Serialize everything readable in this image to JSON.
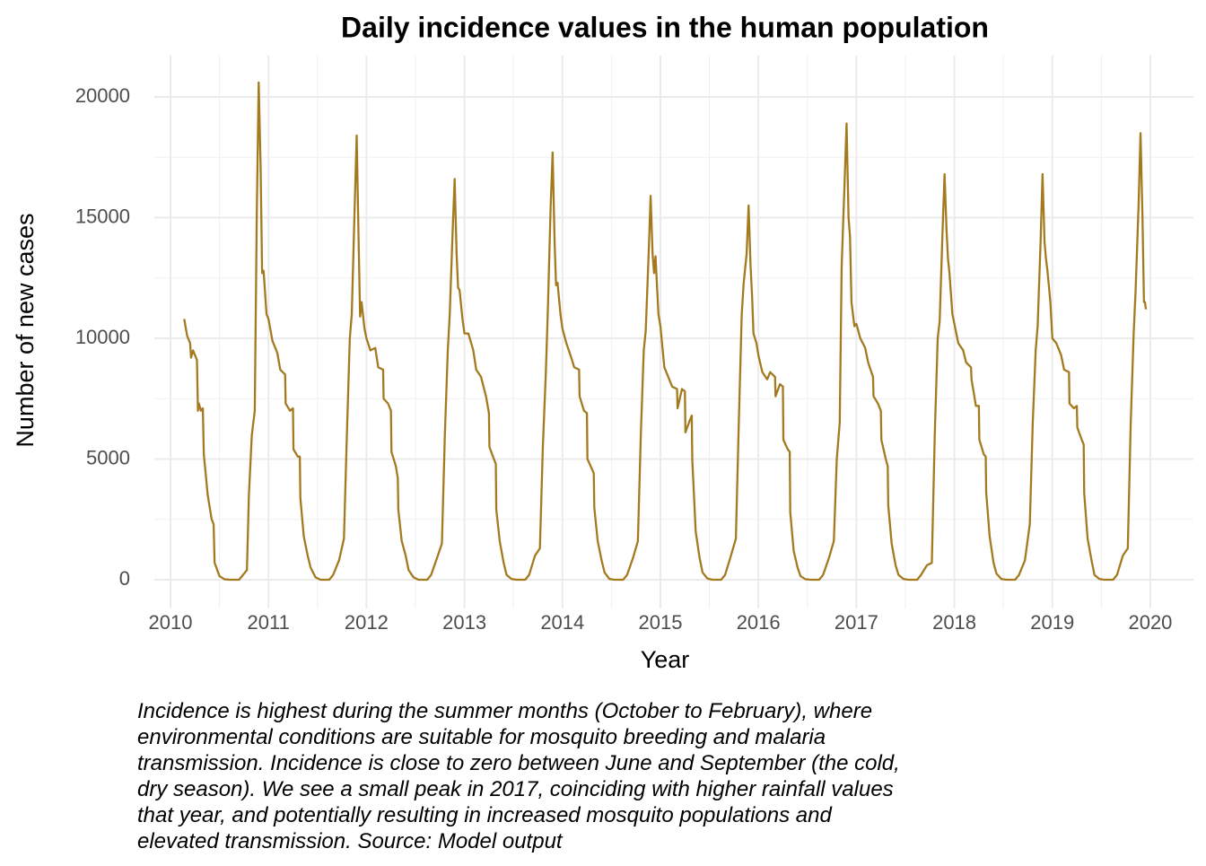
{
  "chart_data": {
    "type": "line",
    "title": "Daily incidence values in the human population",
    "x_label": "Year",
    "y_label": "Number of new cases",
    "caption": [
      "Incidence is highest during the summer months (October to February), where",
      "environmental conditions are suitable for mosquito breeding and malaria",
      "transmission. Incidence is close to zero between June and September (the cold,",
      "dry season). We see a small peak in 2017, coinciding with higher rainfall values",
      "that year, and potentially resulting in increased mosquito populations and",
      "elevated transmission. Source: Model output"
    ],
    "color": "#a47a1e",
    "grid": true,
    "xlim": [
      2009.835,
      2020.44
    ],
    "ylim": [
      -1190,
      21710
    ],
    "xticks": [
      2010,
      2011,
      2012,
      2013,
      2014,
      2015,
      2016,
      2017,
      2018,
      2019,
      2020
    ],
    "yticks": [
      0,
      5000,
      10000,
      15000,
      20000
    ],
    "xminor": [
      2010.5,
      2011.5,
      2012.5,
      2013.5,
      2014.5,
      2015.5,
      2016.5,
      2017.5,
      2018.5,
      2019.5
    ],
    "yminor": [
      2500,
      7500,
      12500,
      17500
    ],
    "x": [
      2010.14,
      2010.17,
      2010.2,
      2010.21,
      2010.23,
      2010.27,
      2010.28,
      2010.29,
      2010.31,
      2010.33,
      2010.34,
      2010.38,
      2010.42,
      2010.44,
      2010.45,
      2010.5,
      2010.55,
      2010.6,
      2010.7,
      2010.74,
      2010.78,
      2010.8,
      2010.83,
      2010.86,
      2010.88,
      2010.9,
      2010.92,
      2010.935,
      2010.95,
      2010.98,
      2011.0,
      2011.04,
      2011.09,
      2011.12,
      2011.17,
      2011.175,
      2011.22,
      2011.25,
      2011.255,
      2011.3,
      2011.32,
      2011.325,
      2011.36,
      2011.4,
      2011.43,
      2011.48,
      2011.53,
      2011.62,
      2011.66,
      2011.72,
      2011.77,
      2011.8,
      2011.83,
      2011.85,
      2011.88,
      2011.9,
      2011.92,
      2011.935,
      2011.95,
      2011.98,
      2012.0,
      2012.04,
      2012.09,
      2012.12,
      2012.17,
      2012.175,
      2012.22,
      2012.25,
      2012.255,
      2012.3,
      2012.32,
      2012.325,
      2012.36,
      2012.4,
      2012.43,
      2012.48,
      2012.53,
      2012.62,
      2012.66,
      2012.72,
      2012.77,
      2012.8,
      2012.83,
      2012.85,
      2012.88,
      2012.9,
      2012.92,
      2012.935,
      2012.95,
      2012.98,
      2013.0,
      2013.04,
      2013.09,
      2013.12,
      2013.17,
      2013.175,
      2013.22,
      2013.25,
      2013.255,
      2013.3,
      2013.32,
      2013.325,
      2013.36,
      2013.4,
      2013.43,
      2013.48,
      2013.53,
      2013.62,
      2013.66,
      2013.72,
      2013.77,
      2013.8,
      2013.83,
      2013.85,
      2013.88,
      2013.9,
      2013.92,
      2013.935,
      2013.95,
      2013.98,
      2014.0,
      2014.04,
      2014.09,
      2014.12,
      2014.17,
      2014.175,
      2014.22,
      2014.25,
      2014.255,
      2014.3,
      2014.32,
      2014.325,
      2014.36,
      2014.4,
      2014.43,
      2014.48,
      2014.53,
      2014.62,
      2014.66,
      2014.72,
      2014.77,
      2014.8,
      2014.83,
      2014.85,
      2014.88,
      2014.9,
      2014.92,
      2014.935,
      2014.95,
      2014.98,
      2015.0,
      2015.04,
      2015.09,
      2015.12,
      2015.17,
      2015.175,
      2015.22,
      2015.25,
      2015.255,
      2015.3,
      2015.32,
      2015.325,
      2015.36,
      2015.4,
      2015.43,
      2015.48,
      2015.53,
      2015.62,
      2015.66,
      2015.72,
      2015.77,
      2015.8,
      2015.83,
      2015.85,
      2015.88,
      2015.9,
      2015.92,
      2015.935,
      2015.95,
      2015.98,
      2016.0,
      2016.04,
      2016.09,
      2016.12,
      2016.17,
      2016.175,
      2016.22,
      2016.25,
      2016.255,
      2016.3,
      2016.32,
      2016.325,
      2016.36,
      2016.4,
      2016.43,
      2016.48,
      2016.53,
      2016.62,
      2016.66,
      2016.72,
      2016.77,
      2016.8,
      2016.83,
      2016.85,
      2016.88,
      2016.9,
      2016.92,
      2016.935,
      2016.95,
      2016.98,
      2017.0,
      2017.04,
      2017.09,
      2017.12,
      2017.17,
      2017.175,
      2017.22,
      2017.25,
      2017.255,
      2017.3,
      2017.32,
      2017.325,
      2017.36,
      2017.4,
      2017.43,
      2017.48,
      2017.53,
      2017.62,
      2017.66,
      2017.72,
      2017.77,
      2017.8,
      2017.83,
      2017.85,
      2017.88,
      2017.9,
      2017.92,
      2017.935,
      2017.95,
      2017.98,
      2018.0,
      2018.04,
      2018.09,
      2018.12,
      2018.17,
      2018.175,
      2018.22,
      2018.25,
      2018.255,
      2018.3,
      2018.32,
      2018.325,
      2018.36,
      2018.4,
      2018.43,
      2018.48,
      2018.53,
      2018.62,
      2018.66,
      2018.72,
      2018.77,
      2018.8,
      2018.83,
      2018.85,
      2018.88,
      2018.9,
      2018.92,
      2018.935,
      2018.95,
      2018.98,
      2019.0,
      2019.04,
      2019.09,
      2019.12,
      2019.17,
      2019.175,
      2019.22,
      2019.25,
      2019.255,
      2019.3,
      2019.32,
      2019.325,
      2019.36,
      2019.4,
      2019.43,
      2019.48,
      2019.53,
      2019.62,
      2019.66,
      2019.72,
      2019.77,
      2019.8,
      2019.83,
      2019.85,
      2019.88,
      2019.9,
      2019.92,
      2019.935,
      2019.945,
      2019.955
    ],
    "values": [
      10800,
      10100,
      9800,
      9200,
      9500,
      9100,
      7000,
      7300,
      7000,
      7100,
      5200,
      3500,
      2500,
      2300,
      700,
      150,
      20,
      0,
      0,
      200,
      400,
      3500,
      6000,
      7000,
      15000,
      20600,
      17000,
      12700,
      12800,
      11000,
      10800,
      9900,
      9400,
      8700,
      8500,
      7300,
      7000,
      7100,
      5400,
      5100,
      5100,
      3400,
      1800,
      1000,
      500,
      100,
      0,
      0,
      200,
      800,
      1700,
      6000,
      10000,
      11000,
      15500,
      18400,
      14000,
      10900,
      11500,
      10400,
      10000,
      9500,
      9600,
      8800,
      8700,
      7500,
      7300,
      7000,
      5300,
      4700,
      4200,
      2900,
      1600,
      1000,
      400,
      100,
      0,
      0,
      200,
      900,
      1500,
      6000,
      9500,
      11000,
      14500,
      16600,
      13500,
      12100,
      12000,
      10800,
      10200,
      10200,
      9500,
      8700,
      8400,
      8300,
      7600,
      6900,
      5500,
      5000,
      4800,
      2900,
      1600,
      700,
      200,
      30,
      0,
      0,
      200,
      1000,
      1300,
      5500,
      8500,
      11000,
      15500,
      17700,
      14000,
      12200,
      12300,
      11000,
      10400,
      9800,
      9200,
      8800,
      8700,
      7600,
      7000,
      6900,
      5000,
      4600,
      4400,
      3000,
      1600,
      800,
      300,
      30,
      0,
      0,
      200,
      900,
      1600,
      6000,
      9500,
      10300,
      13500,
      15900,
      13500,
      12700,
      13400,
      11000,
      10500,
      8800,
      8300,
      8000,
      7900,
      7100,
      7900,
      7800,
      6100,
      6600,
      6800,
      5000,
      2000,
      900,
      300,
      50,
      0,
      0,
      200,
      1000,
      1700,
      6500,
      11000,
      12300,
      13500,
      15500,
      13000,
      11800,
      10200,
      9800,
      9300,
      8600,
      8300,
      8600,
      8400,
      7600,
      8100,
      8000,
      5800,
      5400,
      5300,
      2800,
      1200,
      500,
      150,
      20,
      0,
      0,
      200,
      900,
      1600,
      5000,
      6500,
      13000,
      16500,
      18900,
      15000,
      14200,
      11500,
      10500,
      10600,
      10000,
      9600,
      9000,
      8400,
      7600,
      7300,
      7000,
      5800,
      5000,
      4700,
      3100,
      1500,
      600,
      200,
      30,
      0,
      0,
      200,
      600,
      700,
      6000,
      10000,
      10700,
      14500,
      16800,
      14500,
      13300,
      12700,
      11000,
      10600,
      9800,
      9500,
      9000,
      8800,
      8300,
      7200,
      7200,
      5800,
      5200,
      5100,
      3600,
      1800,
      700,
      250,
      30,
      0,
      0,
      200,
      800,
      2300,
      6500,
      9500,
      10500,
      14000,
      16800,
      14000,
      13300,
      12800,
      11500,
      10000,
      9800,
      9300,
      8700,
      8600,
      7300,
      7100,
      7200,
      6300,
      5800,
      5600,
      3600,
      1700,
      800,
      200,
      30,
      0,
      0,
      200,
      1000,
      1300,
      6500,
      10200,
      12000,
      15500,
      18500,
      15000,
      11500,
      11500,
      11200
    ]
  }
}
